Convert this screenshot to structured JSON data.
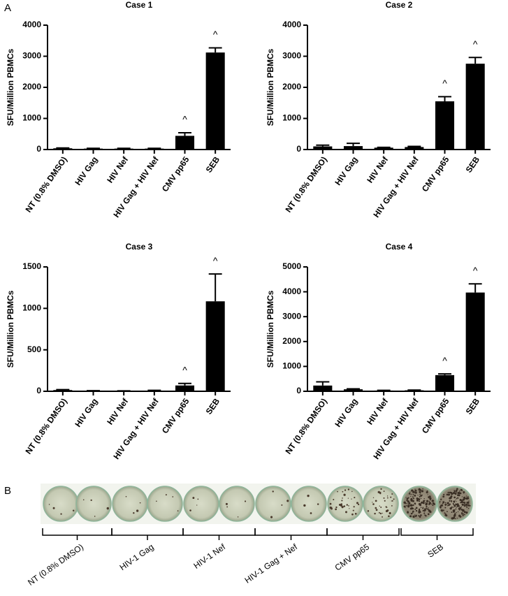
{
  "panel_labels": [
    "A",
    "B"
  ],
  "chart_data": [
    {
      "type": "bar",
      "title": "Case 1",
      "ylabel": "SFU/Million PBMCs",
      "categories": [
        "NT (0.8% DMSO)",
        "HIV Gag",
        "HIV Nef",
        "HIV Gag + HIV Nef",
        "CMV pp65",
        "SEB"
      ],
      "values": [
        40,
        30,
        30,
        30,
        440,
        3120
      ],
      "errors": [
        10,
        8,
        8,
        8,
        100,
        150
      ],
      "markers": [
        null,
        null,
        null,
        null,
        "^",
        "^"
      ],
      "color": "#000000",
      "ylim": [
        0,
        4000
      ],
      "yticks": [
        0,
        1000,
        2000,
        3000,
        4000
      ]
    },
    {
      "type": "bar",
      "title": "Case 2",
      "ylabel": "SFU/Million PBMCs",
      "categories": [
        "NT (0.8% DMSO)",
        "HIV Gag",
        "HIV Nef",
        "HIV Gag + HIV Nef",
        "CMV pp65",
        "SEB"
      ],
      "values": [
        100,
        110,
        60,
        80,
        1550,
        2760
      ],
      "errors": [
        40,
        90,
        10,
        20,
        150,
        200
      ],
      "markers": [
        null,
        null,
        null,
        null,
        "^",
        "^"
      ],
      "color": "#000000",
      "ylim": [
        0,
        4000
      ],
      "yticks": [
        0,
        1000,
        2000,
        3000,
        4000
      ]
    },
    {
      "type": "bar",
      "title": "Case 3",
      "ylabel": "SFU/Million PBMCs",
      "categories": [
        "NT (0.8% DMSO)",
        "HIV Gag",
        "HIV Nef",
        "HIV Gag + HIV Nef",
        "CMV pp65",
        "SEB"
      ],
      "values": [
        15,
        5,
        3,
        8,
        70,
        1085
      ],
      "errors": [
        5,
        2,
        2,
        4,
        25,
        330
      ],
      "markers": [
        null,
        null,
        null,
        null,
        "^",
        "^"
      ],
      "color": "#000000",
      "ylim": [
        0,
        1500
      ],
      "yticks": [
        0,
        500,
        1000,
        1500
      ]
    },
    {
      "type": "bar",
      "title": "Case 4",
      "ylabel": "SFU/Million PBMCs",
      "categories": [
        "NT (0.8% DMSO)",
        "HIV Gag",
        "HIV Nef",
        "HIV Gag + HIV Nef",
        "CMV pp65",
        "SEB"
      ],
      "values": [
        230,
        80,
        30,
        40,
        650,
        3970
      ],
      "errors": [
        150,
        20,
        8,
        8,
        50,
        350
      ],
      "markers": [
        null,
        null,
        null,
        null,
        "^",
        "^"
      ],
      "color": "#000000",
      "ylim": [
        0,
        5000
      ],
      "yticks": [
        0,
        1000,
        2000,
        3000,
        4000,
        5000
      ]
    }
  ],
  "panel_b": {
    "labels": [
      "NT (0.8% DMSO)",
      "HIV-1 Gag",
      "HIV-1 Nef",
      "HIV-1 Gag + Nef",
      "CMV pp65",
      "SEB"
    ]
  }
}
